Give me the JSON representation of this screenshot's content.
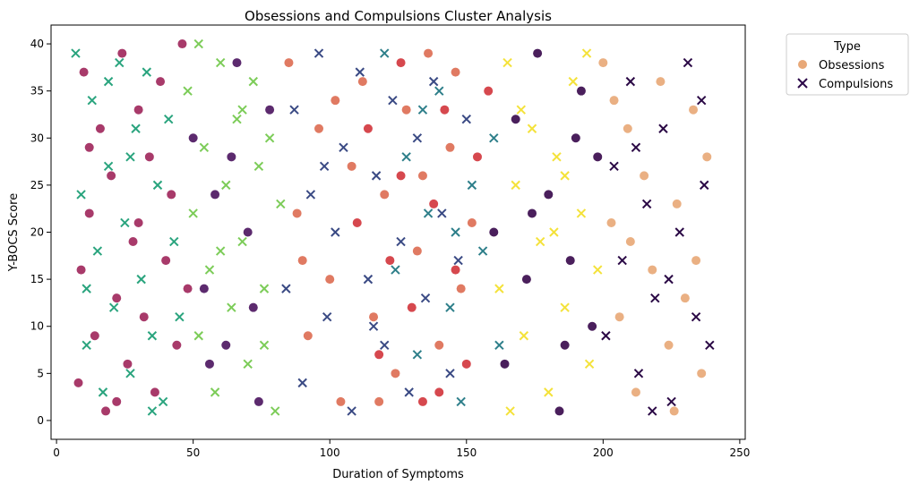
{
  "chart_data": {
    "type": "scatter",
    "title": "Obsessions and Compulsions Cluster Analysis",
    "xlabel": "Duration of Symptoms",
    "ylabel": "Y-BOCS Score",
    "xlim": [
      -2,
      252
    ],
    "ylim": [
      -2,
      42
    ],
    "xticks": [
      0,
      50,
      100,
      150,
      200,
      250
    ],
    "yticks": [
      0,
      5,
      10,
      15,
      20,
      25,
      30,
      35,
      40
    ],
    "grid": false,
    "legend": {
      "title": "Type",
      "placement": "outside-top-right",
      "entries": [
        {
          "label": "Obsessions",
          "marker": "circle",
          "color": "#e8a878"
        },
        {
          "label": "Compulsions",
          "marker": "x",
          "color": "#2d0a4a"
        }
      ]
    },
    "cluster_colors": {
      "cluster_0": "#5c2a6e",
      "cluster_1": "#a83a6a",
      "cluster_2": "#2aa47e",
      "cluster_3": "#7ccc58",
      "cluster_4": "#e07a62",
      "cluster_5": "#d6484e",
      "cluster_6": "#3a4a84",
      "cluster_7": "#2e7f8a",
      "cluster_8": "#f4e23a",
      "cluster_9": "#4a1f5c",
      "cluster_10": "#eab083",
      "cluster_11": "#2a0845"
    },
    "series": [
      {
        "cluster": 1,
        "type": "Obsessions",
        "points": [
          [
            8,
            4
          ],
          [
            9,
            16
          ],
          [
            10,
            37
          ],
          [
            12,
            22
          ],
          [
            14,
            9
          ],
          [
            16,
            31
          ],
          [
            18,
            1
          ],
          [
            20,
            26
          ],
          [
            22,
            13
          ],
          [
            24,
            39
          ],
          [
            26,
            6
          ],
          [
            28,
            19
          ],
          [
            30,
            33
          ],
          [
            32,
            11
          ],
          [
            34,
            28
          ],
          [
            36,
            3
          ],
          [
            38,
            36
          ],
          [
            40,
            17
          ],
          [
            42,
            24
          ],
          [
            44,
            8
          ],
          [
            46,
            40
          ],
          [
            48,
            14
          ],
          [
            12,
            29
          ],
          [
            22,
            2
          ],
          [
            30,
            21
          ]
        ]
      },
      {
        "cluster": 2,
        "type": "Compulsions",
        "points": [
          [
            7,
            39
          ],
          [
            9,
            24
          ],
          [
            11,
            8
          ],
          [
            13,
            34
          ],
          [
            15,
            18
          ],
          [
            17,
            3
          ],
          [
            19,
            27
          ],
          [
            21,
            12
          ],
          [
            23,
            38
          ],
          [
            25,
            21
          ],
          [
            27,
            5
          ],
          [
            29,
            31
          ],
          [
            31,
            15
          ],
          [
            33,
            37
          ],
          [
            35,
            9
          ],
          [
            37,
            25
          ],
          [
            39,
            2
          ],
          [
            41,
            32
          ],
          [
            43,
            19
          ],
          [
            45,
            11
          ],
          [
            11,
            14
          ],
          [
            19,
            36
          ],
          [
            27,
            28
          ],
          [
            35,
            1
          ]
        ]
      },
      {
        "cluster": 3,
        "type": "Compulsions",
        "points": [
          [
            48,
            35
          ],
          [
            50,
            22
          ],
          [
            52,
            9
          ],
          [
            54,
            29
          ],
          [
            56,
            16
          ],
          [
            58,
            3
          ],
          [
            60,
            38
          ],
          [
            62,
            25
          ],
          [
            64,
            12
          ],
          [
            66,
            32
          ],
          [
            68,
            19
          ],
          [
            70,
            6
          ],
          [
            72,
            36
          ],
          [
            74,
            27
          ],
          [
            76,
            14
          ],
          [
            78,
            30
          ],
          [
            80,
            1
          ],
          [
            82,
            23
          ],
          [
            52,
            40
          ],
          [
            60,
            18
          ],
          [
            68,
            33
          ],
          [
            76,
            8
          ]
        ]
      },
      {
        "cluster": 0,
        "type": "Obsessions",
        "points": [
          [
            50,
            30
          ],
          [
            54,
            14
          ],
          [
            58,
            24
          ],
          [
            62,
            8
          ],
          [
            66,
            38
          ],
          [
            70,
            20
          ],
          [
            74,
            2
          ],
          [
            78,
            33
          ],
          [
            56,
            6
          ],
          [
            64,
            28
          ],
          [
            72,
            12
          ]
        ]
      },
      {
        "cluster": 4,
        "type": "Obsessions",
        "points": [
          [
            85,
            38
          ],
          [
            88,
            22
          ],
          [
            92,
            9
          ],
          [
            96,
            31
          ],
          [
            100,
            15
          ],
          [
            104,
            2
          ],
          [
            108,
            27
          ],
          [
            112,
            36
          ],
          [
            116,
            11
          ],
          [
            120,
            24
          ],
          [
            124,
            5
          ],
          [
            128,
            33
          ],
          [
            132,
            18
          ],
          [
            136,
            39
          ],
          [
            140,
            8
          ],
          [
            144,
            29
          ],
          [
            148,
            14
          ],
          [
            152,
            21
          ],
          [
            90,
            17
          ],
          [
            102,
            34
          ],
          [
            118,
            2
          ],
          [
            134,
            26
          ],
          [
            146,
            37
          ]
        ]
      },
      {
        "cluster": 5,
        "type": "Obsessions",
        "points": [
          [
            110,
            21
          ],
          [
            114,
            31
          ],
          [
            118,
            7
          ],
          [
            122,
            17
          ],
          [
            126,
            38
          ],
          [
            130,
            12
          ],
          [
            134,
            2
          ],
          [
            138,
            23
          ],
          [
            142,
            33
          ],
          [
            146,
            16
          ],
          [
            150,
            6
          ],
          [
            154,
            28
          ],
          [
            158,
            35
          ],
          [
            126,
            26
          ],
          [
            140,
            3
          ]
        ]
      },
      {
        "cluster": 6,
        "type": "Compulsions",
        "points": [
          [
            84,
            14
          ],
          [
            87,
            33
          ],
          [
            90,
            4
          ],
          [
            93,
            24
          ],
          [
            96,
            39
          ],
          [
            99,
            11
          ],
          [
            102,
            20
          ],
          [
            105,
            29
          ],
          [
            108,
            1
          ],
          [
            111,
            37
          ],
          [
            114,
            15
          ],
          [
            117,
            26
          ],
          [
            120,
            8
          ],
          [
            123,
            34
          ],
          [
            126,
            19
          ],
          [
            129,
            3
          ],
          [
            132,
            30
          ],
          [
            135,
            13
          ],
          [
            138,
            36
          ],
          [
            141,
            22
          ],
          [
            144,
            5
          ],
          [
            147,
            17
          ],
          [
            150,
            32
          ],
          [
            98,
            27
          ],
          [
            116,
            10
          ]
        ]
      },
      {
        "cluster": 7,
        "type": "Compulsions",
        "points": [
          [
            120,
            39
          ],
          [
            124,
            16
          ],
          [
            128,
            28
          ],
          [
            132,
            7
          ],
          [
            136,
            22
          ],
          [
            140,
            35
          ],
          [
            144,
            12
          ],
          [
            148,
            2
          ],
          [
            152,
            25
          ],
          [
            156,
            18
          ],
          [
            160,
            30
          ],
          [
            162,
            8
          ],
          [
            134,
            33
          ],
          [
            146,
            20
          ]
        ]
      },
      {
        "cluster": 8,
        "type": "Compulsions",
        "points": [
          [
            162,
            14
          ],
          [
            165,
            38
          ],
          [
            168,
            25
          ],
          [
            171,
            9
          ],
          [
            174,
            31
          ],
          [
            177,
            19
          ],
          [
            180,
            3
          ],
          [
            183,
            28
          ],
          [
            186,
            12
          ],
          [
            189,
            36
          ],
          [
            192,
            22
          ],
          [
            195,
            6
          ],
          [
            198,
            16
          ],
          [
            170,
            33
          ],
          [
            182,
            20
          ],
          [
            194,
            39
          ],
          [
            166,
            1
          ],
          [
            186,
            26
          ]
        ]
      },
      {
        "cluster": 9,
        "type": "Obsessions",
        "points": [
          [
            160,
            20
          ],
          [
            164,
            6
          ],
          [
            168,
            32
          ],
          [
            172,
            15
          ],
          [
            176,
            39
          ],
          [
            180,
            24
          ],
          [
            184,
            1
          ],
          [
            188,
            17
          ],
          [
            192,
            35
          ],
          [
            196,
            10
          ],
          [
            198,
            28
          ],
          [
            174,
            22
          ],
          [
            186,
            8
          ],
          [
            190,
            30
          ]
        ]
      },
      {
        "cluster": 10,
        "type": "Obsessions",
        "points": [
          [
            200,
            38
          ],
          [
            203,
            21
          ],
          [
            206,
            11
          ],
          [
            209,
            31
          ],
          [
            212,
            3
          ],
          [
            215,
            26
          ],
          [
            218,
            16
          ],
          [
            221,
            36
          ],
          [
            224,
            8
          ],
          [
            227,
            23
          ],
          [
            230,
            13
          ],
          [
            233,
            33
          ],
          [
            236,
            5
          ],
          [
            238,
            28
          ],
          [
            210,
            19
          ],
          [
            226,
            1
          ],
          [
            234,
            17
          ],
          [
            204,
            34
          ]
        ]
      },
      {
        "cluster": 11,
        "type": "Compulsions",
        "points": [
          [
            201,
            9
          ],
          [
            204,
            27
          ],
          [
            207,
            17
          ],
          [
            210,
            36
          ],
          [
            213,
            5
          ],
          [
            216,
            23
          ],
          [
            219,
            13
          ],
          [
            222,
            31
          ],
          [
            225,
            2
          ],
          [
            228,
            20
          ],
          [
            231,
            38
          ],
          [
            234,
            11
          ],
          [
            237,
            25
          ],
          [
            239,
            8
          ],
          [
            212,
            29
          ],
          [
            224,
            15
          ],
          [
            236,
            34
          ],
          [
            218,
            1
          ]
        ]
      }
    ]
  }
}
